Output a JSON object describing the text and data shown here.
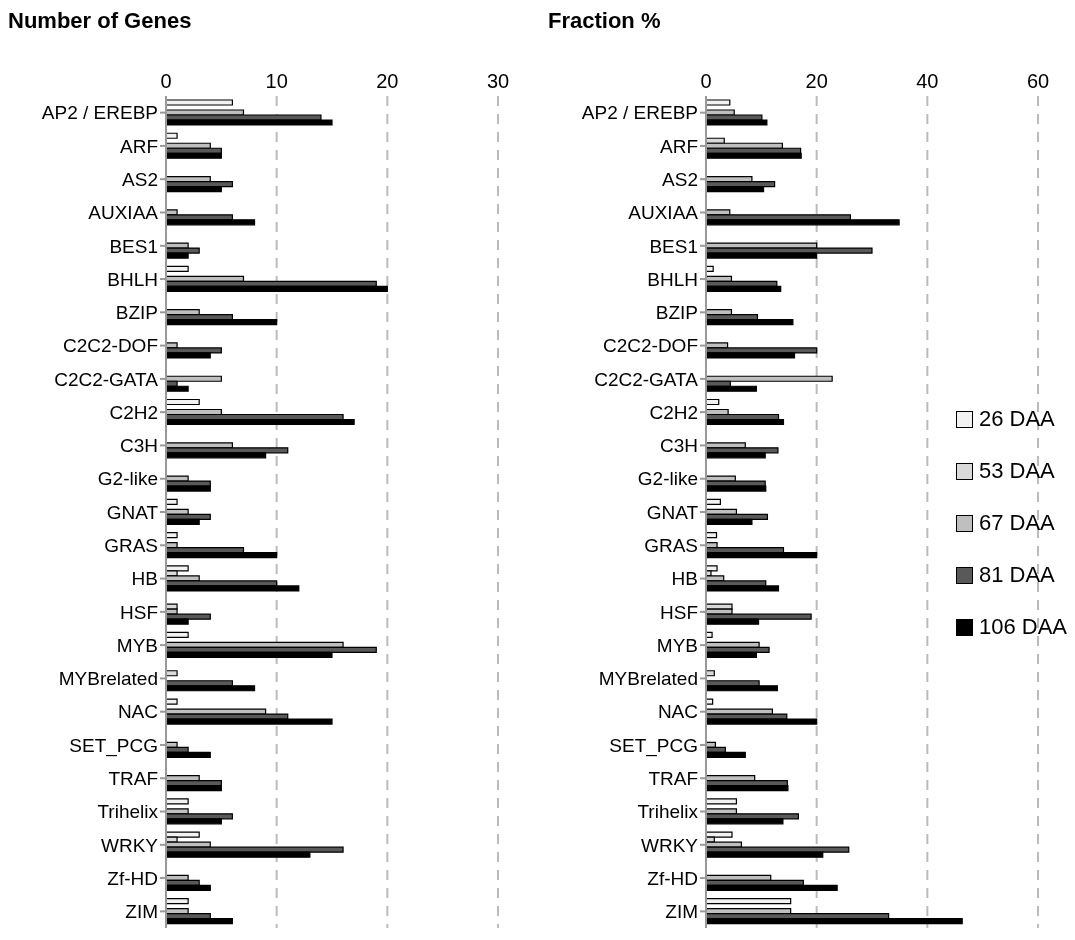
{
  "chart_data": [
    {
      "type": "bar",
      "orientation": "horizontal",
      "title": "Number of Genes",
      "categories": [
        "AP2 / EREBP",
        "ARF",
        "AS2",
        "AUXIAA",
        "BES1",
        "BHLH",
        "BZIP",
        "C2C2-DOF",
        "C2C2-GATA",
        "C2H2",
        "C3H",
        "G2-like",
        "GNAT",
        "GRAS",
        "HB",
        "HSF",
        "MYB",
        "MYBrelated",
        "NAC",
        "SET_PCG",
        "TRAF",
        "Trihelix",
        "WRKY",
        "Zf-HD",
        "ZIM"
      ],
      "series": [
        {
          "color": "#f2f2f2",
          "values": [
            6,
            1,
            0,
            0,
            0,
            2,
            0,
            0,
            0,
            3,
            0,
            0,
            1,
            1,
            2,
            0,
            2,
            0,
            1,
            0,
            0,
            2,
            3,
            0,
            2
          ]
        },
        {
          "color": "#d9d9d9",
          "values": [
            0,
            0,
            0,
            0,
            0,
            0,
            0,
            0,
            0,
            0,
            0,
            0,
            0,
            0,
            1,
            1,
            0,
            1,
            0,
            0,
            0,
            0,
            1,
            0,
            0
          ]
        },
        {
          "color": "#bfbfbf",
          "values": [
            7,
            4,
            4,
            1,
            2,
            7,
            3,
            1,
            5,
            5,
            6,
            2,
            2,
            1,
            3,
            1,
            16,
            0,
            9,
            1,
            3,
            2,
            4,
            2,
            2
          ]
        },
        {
          "color": "#595959",
          "values": [
            14,
            5,
            6,
            6,
            3,
            19,
            6,
            5,
            1,
            16,
            11,
            4,
            4,
            7,
            10,
            4,
            19,
            6,
            11,
            2,
            5,
            6,
            16,
            3,
            4
          ]
        },
        {
          "color": "#000000",
          "values": [
            15,
            5,
            5,
            8,
            2,
            20,
            10,
            4,
            2,
            17,
            9,
            4,
            3,
            10,
            12,
            2,
            15,
            8,
            15,
            4,
            5,
            5,
            13,
            4,
            6
          ]
        }
      ],
      "xlim": [
        0,
        30
      ],
      "xticks": [
        0,
        10,
        20,
        30
      ],
      "grid": "x",
      "legend": false
    },
    {
      "type": "bar",
      "orientation": "horizontal",
      "title": "Fraction %",
      "categories": [
        "AP2 / EREBP",
        "ARF",
        "AS2",
        "AUXIAA",
        "BES1",
        "BHLH",
        "BZIP",
        "C2C2-DOF",
        "C2C2-GATA",
        "C2H2",
        "C3H",
        "G2-like",
        "GNAT",
        "GRAS",
        "HB",
        "HSF",
        "MYB",
        "MYBrelated",
        "NAC",
        "SET_PCG",
        "TRAF",
        "Trihelix",
        "WRKY",
        "Zf-HD",
        "ZIM"
      ],
      "series": [
        {
          "name": "26 DAA",
          "color": "#f2f2f2",
          "values": [
            4.3,
            0,
            0,
            0,
            0,
            1.3,
            0,
            0,
            0,
            2.3,
            0,
            0,
            2.6,
            1.9,
            2.0,
            0,
            1.1,
            0,
            1.2,
            0,
            0,
            5.5,
            4.7,
            0,
            15.3
          ]
        },
        {
          "name": "53 DAA",
          "color": "#d9d9d9",
          "values": [
            0,
            3.3,
            0,
            0,
            0,
            0,
            0,
            0,
            0,
            0,
            0,
            0,
            0,
            0,
            0.9,
            4.7,
            0,
            1.5,
            0,
            0,
            0,
            0,
            1.5,
            0,
            0
          ]
        },
        {
          "name": "67 DAA",
          "color": "#bfbfbf",
          "values": [
            5.1,
            13.8,
            8.3,
            4.3,
            20,
            4.6,
            4.6,
            3.9,
            22.8,
            4.0,
            7.1,
            5.3,
            5.5,
            2.0,
            3.2,
            4.7,
            9.6,
            0,
            12.0,
            1.7,
            8.8,
            5.5,
            6.4,
            11.7,
            15.3
          ]
        },
        {
          "name": "81 DAA",
          "color": "#595959",
          "values": [
            10.1,
            17.1,
            12.4,
            26.1,
            30,
            12.8,
            9.3,
            20,
            4.4,
            13.1,
            13.0,
            10.7,
            11.1,
            14.0,
            10.8,
            19.0,
            11.4,
            9.6,
            14.6,
            3.5,
            14.7,
            16.7,
            25.8,
            17.6,
            33
          ]
        },
        {
          "name": "106 DAA",
          "color": "#000000",
          "values": [
            11.0,
            17.2,
            10.4,
            34.9,
            20,
            13.5,
            15.7,
            16,
            9.1,
            14.0,
            10.7,
            10.8,
            8.3,
            20,
            13.1,
            9.5,
            9.1,
            12.9,
            20,
            7.1,
            14.8,
            13.9,
            21.1,
            23.7,
            46.3
          ]
        }
      ],
      "xlim": [
        0,
        60
      ],
      "xticks": [
        0,
        20,
        40,
        60
      ],
      "grid": "x",
      "legend": "right"
    }
  ]
}
